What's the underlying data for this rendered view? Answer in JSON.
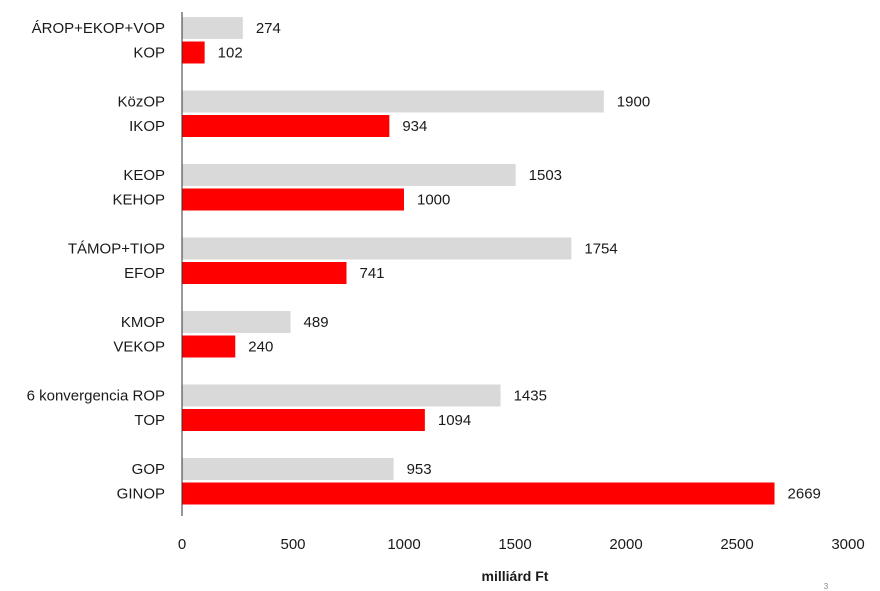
{
  "chart_data": {
    "type": "bar",
    "orientation": "horizontal",
    "xlabel": "milliárd Ft",
    "xlim": [
      0,
      3000
    ],
    "x_ticks": [
      0,
      500,
      1000,
      1500,
      2000,
      2500,
      3000
    ],
    "grid": false,
    "legend": "none",
    "colors": {
      "old": "#d9d9d9",
      "new": "#ff0000"
    },
    "groups": [
      {
        "old": {
          "label": "ÁROP+EKOP+VOP",
          "value": 274
        },
        "new": {
          "label": "KOP",
          "value": 102
        }
      },
      {
        "old": {
          "label": "KözOP",
          "value": 1900
        },
        "new": {
          "label": "IKOP",
          "value": 934
        }
      },
      {
        "old": {
          "label": "KEOP",
          "value": 1503
        },
        "new": {
          "label": "KEHOP",
          "value": 1000
        }
      },
      {
        "old": {
          "label": "TÁMOP+TIOP",
          "value": 1754
        },
        "new": {
          "label": "EFOP",
          "value": 741
        }
      },
      {
        "old": {
          "label": "KMOP",
          "value": 489
        },
        "new": {
          "label": "VEKOP",
          "value": 240
        }
      },
      {
        "old": {
          "label": "6 konvergencia ROP",
          "value": 1435
        },
        "new": {
          "label": "TOP",
          "value": 1094
        }
      },
      {
        "old": {
          "label": "GOP",
          "value": 953
        },
        "new": {
          "label": "GINOP",
          "value": 2669
        }
      }
    ]
  },
  "page_number": "3"
}
